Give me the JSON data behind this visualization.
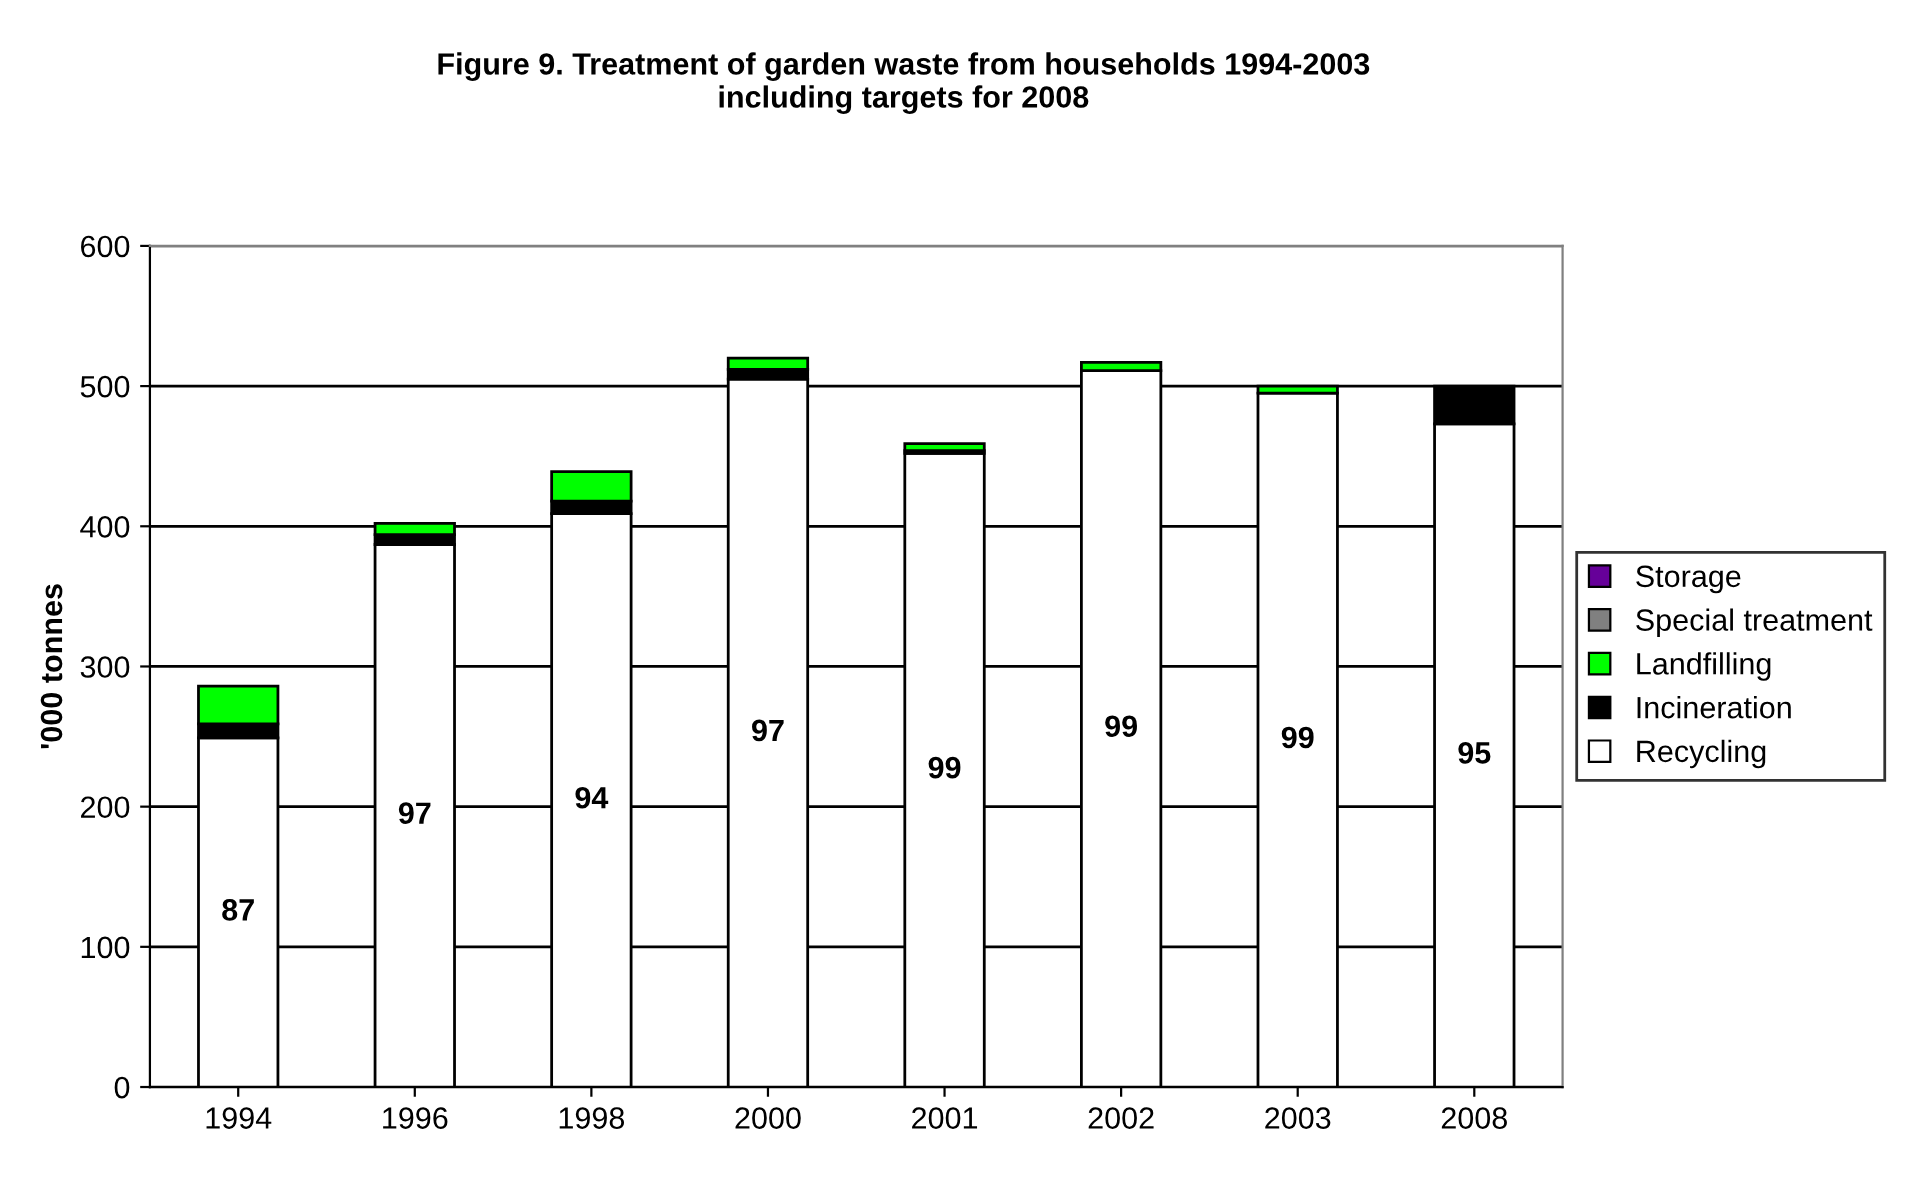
{
  "chart_data": {
    "type": "bar",
    "title": "Figure 9. Treatment of garden waste from households 1994-2003\nincluding targets for 2008",
    "ylabel": "'000 tonnes",
    "categories": [
      "1994",
      "1996",
      "1998",
      "2000",
      "2001",
      "2002",
      "2003",
      "2008"
    ],
    "stacked": true,
    "ylim": [
      0,
      600
    ],
    "yticks": [
      0,
      100,
      200,
      300,
      400,
      500,
      600
    ],
    "grid": "y",
    "legend": "right",
    "annotations": [
      "87",
      "97",
      "94",
      "97",
      "99",
      "99",
      "99",
      "95"
    ],
    "series": [
      {
        "name": "Recycling",
        "color": "#ffffff",
        "values": [
          249,
          387,
          409,
          505,
          452,
          511,
          495,
          473
        ]
      },
      {
        "name": "Incineration",
        "color": "#000000",
        "values": [
          10,
          7,
          9,
          7,
          2,
          null,
          null,
          27
        ]
      },
      {
        "name": "Landfilling",
        "color": "#00ff00",
        "values": [
          27,
          8,
          21,
          8,
          5,
          6,
          5,
          null
        ]
      },
      {
        "name": "Special treatment",
        "color": "#808080",
        "values": [
          null,
          null,
          null,
          null,
          null,
          null,
          null,
          null
        ]
      },
      {
        "name": "Storage",
        "color": "#660099",
        "values": [
          null,
          null,
          null,
          null,
          null,
          null,
          null,
          null
        ]
      }
    ]
  }
}
